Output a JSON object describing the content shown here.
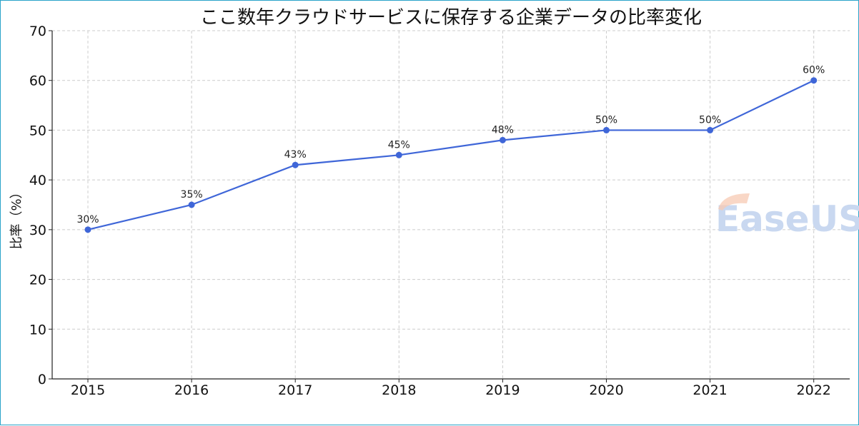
{
  "chart_data": {
    "type": "line",
    "title": "ここ数年クラウドサービスに保存する企業データの比率変化",
    "xlabel": "",
    "ylabel": "比率（%）",
    "categories": [
      "2015",
      "2016",
      "2017",
      "2018",
      "2019",
      "2020",
      "2021",
      "2022"
    ],
    "series": [
      {
        "values": [
          30,
          35,
          43,
          45,
          48,
          50,
          50,
          60
        ]
      }
    ],
    "data_labels": [
      "30%",
      "35%",
      "43%",
      "45%",
      "48%",
      "50%",
      "50%",
      "60%"
    ],
    "ylim": [
      0,
      70
    ],
    "yticks": [
      "0",
      "10",
      "20",
      "30",
      "40",
      "50",
      "60",
      "70"
    ],
    "grid": true,
    "line_color": "#3f66d8",
    "frame_color": "#2aa3c9"
  },
  "watermark": {
    "text": "EaseUS"
  }
}
